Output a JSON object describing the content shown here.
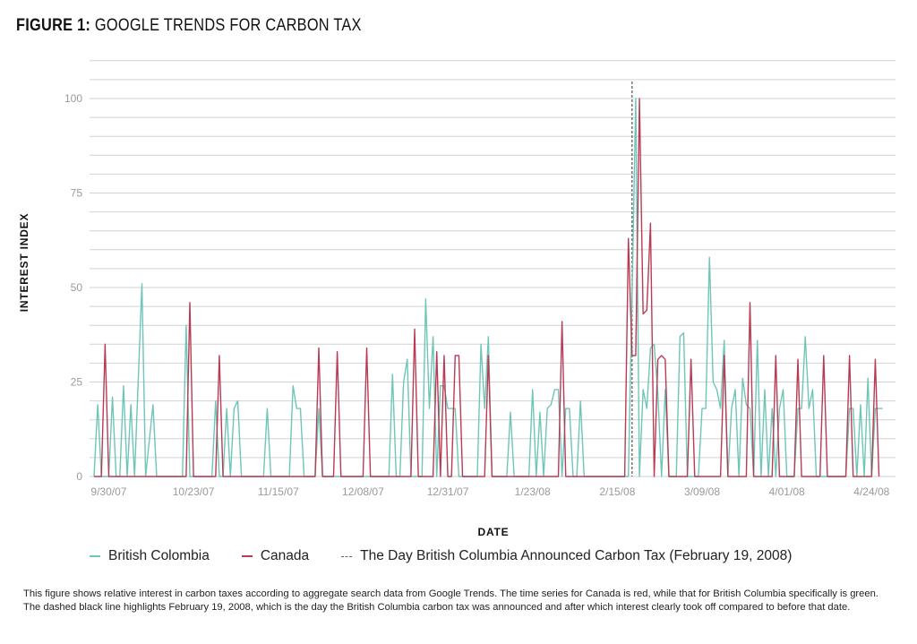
{
  "figure": {
    "title_prefix": "FIGURE 1:",
    "title_text": "GOOGLE TRENDS FOR CARBON TAX",
    "caption": "This figure shows relative interest in carbon taxes according to aggregate search data from Google Trends. The time series for Canada is red, while that for British Columbia specifically is green. The dashed black line highlights February 19, 2008, which is the day the British Columbia carbon tax was announced and after which interest clearly took off compared to before that date."
  },
  "legend": {
    "bc": "British Colombia",
    "canada": "Canada",
    "announce": "The Day British Columbia Announced Carbon Tax (February 19, 2008)"
  },
  "chart_data": {
    "type": "line",
    "xlabel": "DATE",
    "ylabel": "INTEREST INDEX",
    "ylim": [
      0,
      100
    ],
    "yticks": [
      0,
      25,
      50,
      75,
      100
    ],
    "xtick_labels": [
      "9/30/07",
      "10/23/07",
      "11/15/07",
      "12/08/07",
      "12/31/07",
      "1/23/08",
      "2/15/08",
      "3/09/08",
      "4/01/08",
      "4/24/08"
    ],
    "x_start_label": "9/26/07",
    "x_end_label": "4/30/08",
    "grid": true,
    "legend_position": "bottom-left",
    "colors": {
      "bc": "#6ec6b8",
      "canada": "#b83b53",
      "announce": "#555555"
    },
    "announcement_date": "2/19/08",
    "series": [
      {
        "key": "bc",
        "name": "British Colombia",
        "points": [
          [
            "9/26/07",
            0
          ],
          [
            "9/27/07",
            19
          ],
          [
            "9/28/07",
            0
          ],
          [
            "9/30/07",
            0
          ],
          [
            "10/1/07",
            21
          ],
          [
            "10/2/07",
            0
          ],
          [
            "10/3/07",
            0
          ],
          [
            "10/4/07",
            24
          ],
          [
            "10/5/07",
            0
          ],
          [
            "10/6/07",
            19
          ],
          [
            "10/7/07",
            0
          ],
          [
            "10/9/07",
            51
          ],
          [
            "10/10/07",
            0
          ],
          [
            "10/12/07",
            19
          ],
          [
            "10/13/07",
            0
          ],
          [
            "10/20/07",
            0
          ],
          [
            "10/21/07",
            40
          ],
          [
            "10/22/07",
            0
          ],
          [
            "10/28/07",
            0
          ],
          [
            "10/29/07",
            20
          ],
          [
            "10/30/07",
            0
          ],
          [
            "10/31/07",
            0
          ],
          [
            "11/1/07",
            18
          ],
          [
            "11/2/07",
            0
          ],
          [
            "11/3/07",
            18
          ],
          [
            "11/4/07",
            20
          ],
          [
            "11/5/07",
            0
          ],
          [
            "11/11/07",
            0
          ],
          [
            "11/12/07",
            18
          ],
          [
            "11/13/07",
            0
          ],
          [
            "11/15/07",
            0
          ],
          [
            "11/18/07",
            0
          ],
          [
            "11/19/07",
            24
          ],
          [
            "11/20/07",
            18
          ],
          [
            "11/21/07",
            18
          ],
          [
            "11/22/07",
            0
          ],
          [
            "11/25/07",
            0
          ],
          [
            "11/26/07",
            18
          ],
          [
            "11/27/07",
            0
          ],
          [
            "12/15/07",
            0
          ],
          [
            "12/16/07",
            27
          ],
          [
            "12/17/07",
            0
          ],
          [
            "12/18/07",
            0
          ],
          [
            "12/19/07",
            25
          ],
          [
            "12/20/07",
            31
          ],
          [
            "12/21/07",
            0
          ],
          [
            "12/24/07",
            0
          ],
          [
            "12/25/07",
            47
          ],
          [
            "12/26/07",
            18
          ],
          [
            "12/27/07",
            37
          ],
          [
            "12/28/07",
            0
          ],
          [
            "12/29/07",
            24
          ],
          [
            "12/30/07",
            24
          ],
          [
            "12/31/07",
            18
          ],
          [
            "1/1/08",
            18
          ],
          [
            "1/2/08",
            18
          ],
          [
            "1/3/08",
            0
          ],
          [
            "1/8/08",
            0
          ],
          [
            "1/9/08",
            35
          ],
          [
            "1/10/08",
            18
          ],
          [
            "1/11/08",
            37
          ],
          [
            "1/12/08",
            0
          ],
          [
            "1/16/08",
            0
          ],
          [
            "1/17/08",
            17
          ],
          [
            "1/18/08",
            0
          ],
          [
            "1/22/08",
            0
          ],
          [
            "1/23/08",
            23
          ],
          [
            "1/24/08",
            0
          ],
          [
            "1/25/08",
            17
          ],
          [
            "1/26/08",
            0
          ],
          [
            "1/27/08",
            18
          ],
          [
            "1/28/08",
            19
          ],
          [
            "1/29/08",
            23
          ],
          [
            "1/30/08",
            23
          ],
          [
            "1/31/08",
            0
          ],
          [
            "2/1/08",
            18
          ],
          [
            "2/2/08",
            18
          ],
          [
            "2/3/08",
            0
          ],
          [
            "2/4/08",
            0
          ],
          [
            "2/5/08",
            20
          ],
          [
            "2/6/08",
            0
          ],
          [
            "2/18/08",
            0
          ],
          [
            "2/19/08",
            48
          ],
          [
            "2/20/08",
            100
          ],
          [
            "2/21/08",
            0
          ],
          [
            "2/22/08",
            23
          ],
          [
            "2/23/08",
            18
          ],
          [
            "2/24/08",
            34
          ],
          [
            "2/25/08",
            35
          ],
          [
            "2/26/08",
            22
          ],
          [
            "2/27/08",
            0
          ],
          [
            "2/28/08",
            23
          ],
          [
            "2/29/08",
            0
          ],
          [
            "3/2/08",
            0
          ],
          [
            "3/3/08",
            37
          ],
          [
            "3/4/08",
            38
          ],
          [
            "3/5/08",
            0
          ],
          [
            "3/8/08",
            0
          ],
          [
            "3/9/08",
            18
          ],
          [
            "3/10/08",
            18
          ],
          [
            "3/11/08",
            58
          ],
          [
            "3/12/08",
            25
          ],
          [
            "3/13/08",
            23
          ],
          [
            "3/14/08",
            18
          ],
          [
            "3/15/08",
            36
          ],
          [
            "3/16/08",
            0
          ],
          [
            "3/17/08",
            18
          ],
          [
            "3/18/08",
            23
          ],
          [
            "3/19/08",
            0
          ],
          [
            "3/20/08",
            26
          ],
          [
            "3/21/08",
            19
          ],
          [
            "3/22/08",
            18
          ],
          [
            "3/23/08",
            0
          ],
          [
            "3/24/08",
            36
          ],
          [
            "3/25/08",
            0
          ],
          [
            "3/26/08",
            23
          ],
          [
            "3/27/08",
            0
          ],
          [
            "3/28/08",
            18
          ],
          [
            "3/29/08",
            0
          ],
          [
            "3/30/08",
            18
          ],
          [
            "3/31/08",
            23
          ],
          [
            "4/1/08",
            0
          ],
          [
            "4/3/08",
            0
          ],
          [
            "4/4/08",
            18
          ],
          [
            "4/5/08",
            18
          ],
          [
            "4/6/08",
            37
          ],
          [
            "4/7/08",
            18
          ],
          [
            "4/8/08",
            23
          ],
          [
            "4/9/08",
            0
          ],
          [
            "4/17/08",
            0
          ],
          [
            "4/18/08",
            18
          ],
          [
            "4/19/08",
            18
          ],
          [
            "4/20/08",
            0
          ],
          [
            "4/21/08",
            19
          ],
          [
            "4/22/08",
            0
          ],
          [
            "4/23/08",
            26
          ],
          [
            "4/24/08",
            0
          ],
          [
            "4/25/08",
            18
          ],
          [
            "4/26/08",
            18
          ],
          [
            "4/27/08",
            18
          ]
        ]
      },
      {
        "key": "canada",
        "name": "Canada",
        "points": [
          [
            "9/26/07",
            0
          ],
          [
            "9/28/07",
            0
          ],
          [
            "9/29/07",
            35
          ],
          [
            "9/30/07",
            0
          ],
          [
            "10/21/07",
            0
          ],
          [
            "10/22/07",
            46
          ],
          [
            "10/23/07",
            0
          ],
          [
            "10/29/07",
            0
          ],
          [
            "10/30/07",
            32
          ],
          [
            "10/31/07",
            0
          ],
          [
            "11/25/07",
            0
          ],
          [
            "11/26/07",
            34
          ],
          [
            "11/27/07",
            0
          ],
          [
            "11/30/07",
            0
          ],
          [
            "12/1/07",
            33
          ],
          [
            "12/2/07",
            0
          ],
          [
            "12/8/07",
            0
          ],
          [
            "12/9/07",
            34
          ],
          [
            "12/10/07",
            0
          ],
          [
            "12/21/07",
            0
          ],
          [
            "12/22/07",
            39
          ],
          [
            "12/23/07",
            0
          ],
          [
            "12/27/07",
            0
          ],
          [
            "12/28/07",
            33
          ],
          [
            "12/29/07",
            0
          ],
          [
            "12/30/07",
            32
          ],
          [
            "12/31/07",
            0
          ],
          [
            "1/1/08",
            0
          ],
          [
            "1/2/08",
            32
          ],
          [
            "1/3/08",
            32
          ],
          [
            "1/4/08",
            0
          ],
          [
            "1/10/08",
            0
          ],
          [
            "1/11/08",
            32
          ],
          [
            "1/12/08",
            0
          ],
          [
            "1/30/08",
            0
          ],
          [
            "1/31/08",
            41
          ],
          [
            "2/1/08",
            0
          ],
          [
            "2/17/08",
            0
          ],
          [
            "2/18/08",
            63
          ],
          [
            "2/19/08",
            32
          ],
          [
            "2/20/08",
            32
          ],
          [
            "2/21/08",
            100
          ],
          [
            "2/22/08",
            43
          ],
          [
            "2/23/08",
            44
          ],
          [
            "2/24/08",
            67
          ],
          [
            "2/25/08",
            0
          ],
          [
            "2/26/08",
            31
          ],
          [
            "2/27/08",
            32
          ],
          [
            "2/28/08",
            31
          ],
          [
            "2/29/08",
            0
          ],
          [
            "3/5/08",
            0
          ],
          [
            "3/6/08",
            31
          ],
          [
            "3/7/08",
            0
          ],
          [
            "3/14/08",
            0
          ],
          [
            "3/15/08",
            32
          ],
          [
            "3/16/08",
            0
          ],
          [
            "3/21/08",
            0
          ],
          [
            "3/22/08",
            46
          ],
          [
            "3/23/08",
            0
          ],
          [
            "3/28/08",
            0
          ],
          [
            "3/29/08",
            32
          ],
          [
            "3/30/08",
            0
          ],
          [
            "4/3/08",
            0
          ],
          [
            "4/4/08",
            31
          ],
          [
            "4/5/08",
            0
          ],
          [
            "4/10/08",
            0
          ],
          [
            "4/11/08",
            32
          ],
          [
            "4/12/08",
            0
          ],
          [
            "4/17/08",
            0
          ],
          [
            "4/18/08",
            32
          ],
          [
            "4/19/08",
            0
          ],
          [
            "4/24/08",
            0
          ],
          [
            "4/25/08",
            31
          ],
          [
            "4/26/08",
            0
          ]
        ]
      }
    ]
  }
}
